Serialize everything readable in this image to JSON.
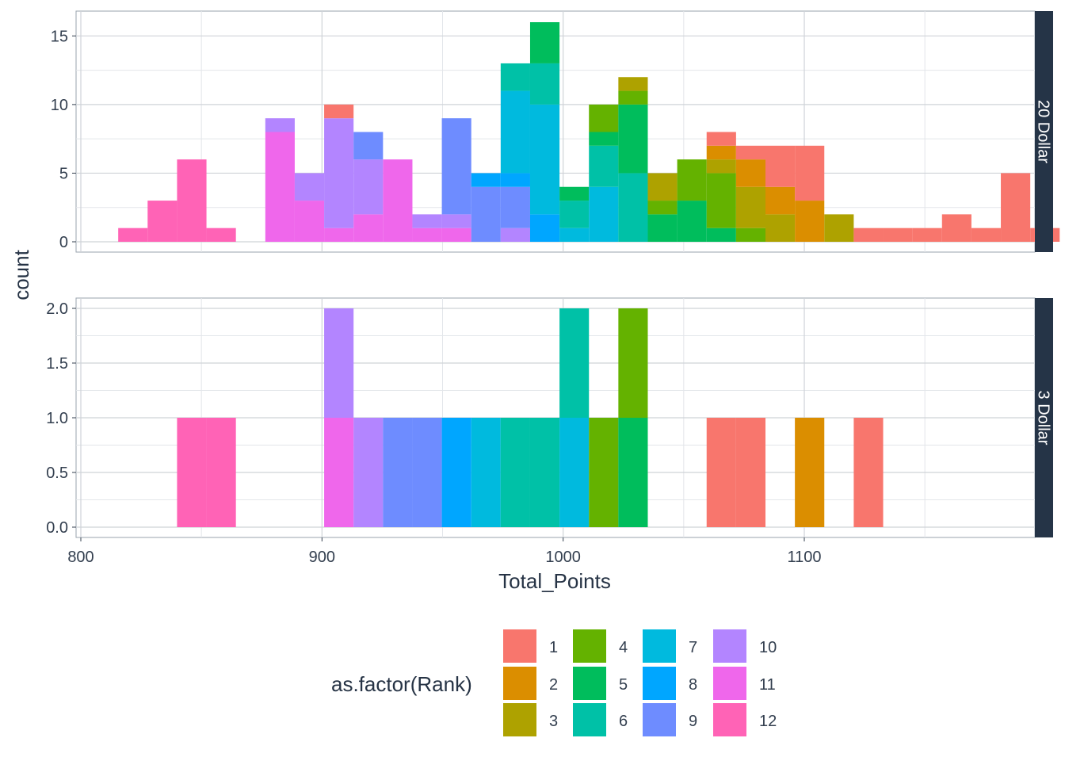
{
  "chart_data": {
    "type": "bar",
    "subtype": "stacked-histogram",
    "binwidth": 12.2,
    "xlabel": "Total_Points",
    "ylabel": "count",
    "xlim": [
      800,
      1195
    ],
    "x_ticks": [
      800,
      900,
      1000,
      1100
    ],
    "grid": true,
    "legend": {
      "title": "as.factor(Rank)",
      "position": "bottom",
      "entries": [
        {
          "key": "1",
          "color": "#F8766D"
        },
        {
          "key": "2",
          "color": "#DB8E00"
        },
        {
          "key": "3",
          "color": "#AEA200"
        },
        {
          "key": "4",
          "color": "#64B200"
        },
        {
          "key": "5",
          "color": "#00BD5C"
        },
        {
          "key": "6",
          "color": "#00C1A7"
        },
        {
          "key": "7",
          "color": "#00BADE"
        },
        {
          "key": "8",
          "color": "#00A6FF"
        },
        {
          "key": "9",
          "color": "#6E8CFF"
        },
        {
          "key": "10",
          "color": "#B385FF"
        },
        {
          "key": "11",
          "color": "#EF67EB"
        },
        {
          "key": "12",
          "color": "#FF63B6"
        }
      ]
    },
    "facets": [
      {
        "label": "20 Dollar",
        "ylim": [
          0,
          16
        ],
        "y_ticks": [
          0,
          5,
          10,
          15
        ],
        "y_tick_labels": [
          "0",
          "5",
          "10",
          "15"
        ],
        "bins": [
          {
            "x": 821.6,
            "counts": {
              "12": 1
            }
          },
          {
            "x": 833.8,
            "counts": {
              "12": 3
            }
          },
          {
            "x": 846.0,
            "counts": {
              "12": 6
            }
          },
          {
            "x": 858.2,
            "counts": {
              "12": 1
            }
          },
          {
            "x": 882.6,
            "counts": {
              "11": 8,
              "10": 1
            }
          },
          {
            "x": 894.8,
            "counts": {
              "11": 3,
              "10": 2
            }
          },
          {
            "x": 907.0,
            "counts": {
              "1": 1,
              "11": 1,
              "10": 8
            }
          },
          {
            "x": 919.2,
            "counts": {
              "11": 2,
              "10": 4,
              "9": 2
            }
          },
          {
            "x": 931.4,
            "counts": {
              "11": 6
            }
          },
          {
            "x": 943.6,
            "counts": {
              "11": 1,
              "10": 1
            }
          },
          {
            "x": 955.8,
            "counts": {
              "11": 1,
              "10": 1,
              "9": 7
            }
          },
          {
            "x": 968.0,
            "counts": {
              "9": 4,
              "8": 1
            }
          },
          {
            "x": 980.2,
            "counts": {
              "10": 1,
              "9": 3,
              "8": 1,
              "7": 6,
              "6": 2
            }
          },
          {
            "x": 992.4,
            "counts": {
              "8": 2,
              "7": 8,
              "6": 3,
              "5": 3
            }
          },
          {
            "x": 1004.6,
            "counts": {
              "7": 1,
              "6": 2,
              "5": 1
            }
          },
          {
            "x": 1016.8,
            "counts": {
              "7": 4,
              "6": 3,
              "5": 1,
              "4": 2
            }
          },
          {
            "x": 1029.0,
            "counts": {
              "6": 5,
              "5": 5,
              "4": 1,
              "3": 1
            }
          },
          {
            "x": 1041.2,
            "counts": {
              "5": 2,
              "4": 1,
              "3": 2
            }
          },
          {
            "x": 1053.4,
            "counts": {
              "5": 3,
              "4": 3
            }
          },
          {
            "x": 1065.6,
            "counts": {
              "5": 1,
              "4": 4,
              "3": 1,
              "2": 1,
              "1": 1
            }
          },
          {
            "x": 1077.8,
            "counts": {
              "4": 1,
              "3": 3,
              "2": 2,
              "1": 1
            }
          },
          {
            "x": 1090.0,
            "counts": {
              "3": 2,
              "2": 2,
              "1": 3
            }
          },
          {
            "x": 1102.2,
            "counts": {
              "2": 3,
              "1": 4
            }
          },
          {
            "x": 1114.4,
            "counts": {
              "3": 2
            }
          },
          {
            "x": 1126.6,
            "counts": {
              "1": 1
            }
          },
          {
            "x": 1138.8,
            "counts": {
              "1": 1
            }
          },
          {
            "x": 1151.0,
            "counts": {
              "1": 1
            }
          },
          {
            "x": 1163.2,
            "counts": {
              "1": 2
            }
          },
          {
            "x": 1175.4,
            "counts": {
              "1": 1
            }
          },
          {
            "x": 1187.6,
            "counts": {
              "1": 5
            }
          },
          {
            "x": 1199.8,
            "counts": {
              "1": 1
            }
          }
        ]
      },
      {
        "label": "3 Dollar",
        "ylim": [
          0,
          2
        ],
        "y_ticks": [
          0,
          0.5,
          1,
          1.5,
          2
        ],
        "y_tick_labels": [
          "0.0",
          "0.5",
          "1.0",
          "1.5",
          "2.0"
        ],
        "bins": [
          {
            "x": 846.0,
            "counts": {
              "12": 1
            }
          },
          {
            "x": 858.2,
            "counts": {
              "12": 1
            }
          },
          {
            "x": 907.0,
            "counts": {
              "11": 1,
              "10": 1
            }
          },
          {
            "x": 919.2,
            "counts": {
              "10": 1
            }
          },
          {
            "x": 931.4,
            "counts": {
              "9": 1
            }
          },
          {
            "x": 943.6,
            "counts": {
              "9": 1
            }
          },
          {
            "x": 955.8,
            "counts": {
              "8": 1
            }
          },
          {
            "x": 968.0,
            "counts": {
              "7": 1
            }
          },
          {
            "x": 980.2,
            "counts": {
              "6": 1
            }
          },
          {
            "x": 992.4,
            "counts": {
              "6": 1
            }
          },
          {
            "x": 1004.6,
            "counts": {
              "7": 1,
              "6": 1
            }
          },
          {
            "x": 1016.8,
            "counts": {
              "4": 1
            }
          },
          {
            "x": 1029.0,
            "counts": {
              "5": 1,
              "4": 1
            }
          },
          {
            "x": 1065.6,
            "counts": {
              "1": 1
            }
          },
          {
            "x": 1077.8,
            "counts": {
              "1": 1
            }
          },
          {
            "x": 1102.2,
            "counts": {
              "2": 1
            }
          },
          {
            "x": 1126.6,
            "counts": {
              "1": 1
            }
          }
        ]
      }
    ]
  }
}
